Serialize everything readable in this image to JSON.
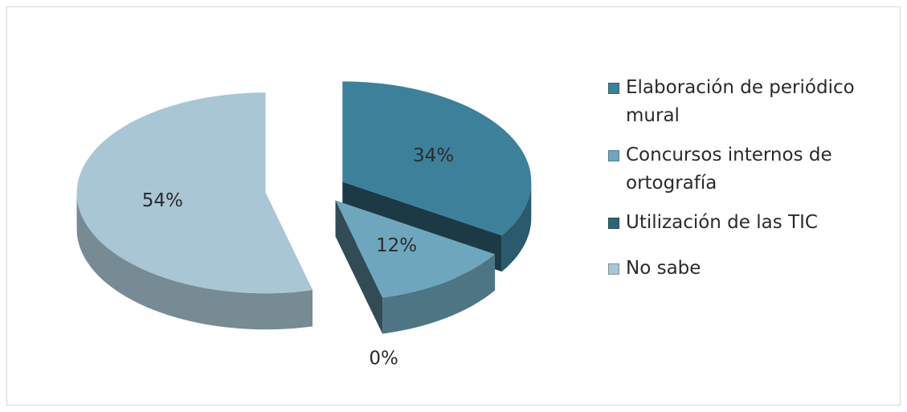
{
  "chart_data": {
    "type": "pie",
    "title": "",
    "categories": [
      "Elaboración de periódico mural",
      "Concursos internos de ortografía",
      "Utilización de las TIC",
      "No sabe"
    ],
    "values": [
      34,
      12,
      0,
      54
    ],
    "data_labels": [
      "34%",
      "12%",
      "0%",
      "54%"
    ],
    "colors": [
      "#3c8199",
      "#6ea7bd",
      "#2f6578",
      "#a8c6d4"
    ],
    "legend_position": "right",
    "style": "3d-exploded"
  }
}
